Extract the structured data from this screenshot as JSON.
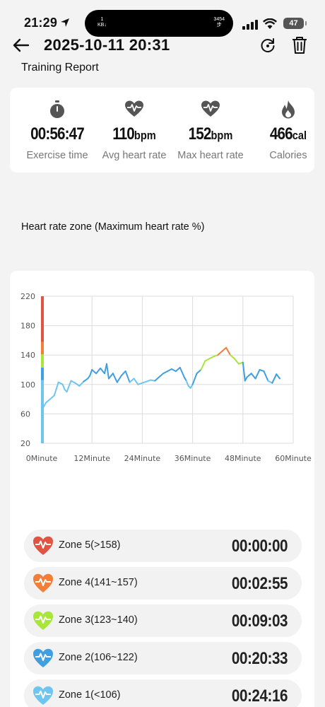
{
  "status_bar": {
    "time": "21:29",
    "island_left": "1\nKB↓",
    "island_right": "3454\n步",
    "battery": "47"
  },
  "header": {
    "title": "2025-10-11 20:31"
  },
  "report": {
    "section_title": "Training Report",
    "stats": [
      {
        "value": "00:56:47",
        "unit": "",
        "label": "Exercise time",
        "icon": "stopwatch-icon"
      },
      {
        "value": "110",
        "unit": "bpm",
        "label": "Avg heart rate",
        "icon": "heart-pulse-icon"
      },
      {
        "value": "152",
        "unit": "bpm",
        "label": "Max heart rate",
        "icon": "heart-pulse-icon"
      },
      {
        "value": "466",
        "unit": "cal",
        "label": "Calories",
        "icon": "flame-icon"
      }
    ]
  },
  "zone_heading": "Heart rate zone (Maximum heart rate %)",
  "chart_data": {
    "type": "line",
    "title": "",
    "xlabel": "",
    "ylabel": "",
    "x_ticks": [
      "0Minute",
      "12Minute",
      "24Minute",
      "36Minute",
      "48Minute",
      "60Minute"
    ],
    "x_tick_values": [
      0,
      12,
      24,
      36,
      48,
      60
    ],
    "y_ticks": [
      20,
      60,
      100,
      140,
      180,
      220
    ],
    "xlim": [
      0,
      60
    ],
    "ylim": [
      20,
      220
    ],
    "grid": true,
    "zone_bar": [
      {
        "zone": 1,
        "from": 20,
        "to": 106,
        "color": "#6ec6f0"
      },
      {
        "zone": 2,
        "from": 106,
        "to": 123,
        "color": "#3f9fe0"
      },
      {
        "zone": 3,
        "from": 123,
        "to": 141,
        "color": "#a8e63a"
      },
      {
        "zone": 4,
        "from": 141,
        "to": 158,
        "color": "#f07f3a"
      },
      {
        "zone": 5,
        "from": 158,
        "to": 220,
        "color": "#e05444"
      }
    ],
    "series": [
      {
        "x": [
          0.3,
          1,
          2,
          3,
          4,
          5,
          5.5,
          6,
          7,
          8,
          9,
          10,
          11,
          11.5,
          12,
          13,
          14,
          15,
          15.5,
          16,
          17,
          18,
          19,
          20,
          21,
          22,
          23,
          24,
          25,
          26,
          27,
          28,
          29,
          30,
          31,
          32,
          33,
          34,
          34.5,
          35,
          35.5,
          36,
          37,
          38,
          39,
          40,
          41,
          42,
          43,
          44,
          45,
          46,
          47,
          48,
          48.5,
          49,
          50,
          51,
          52,
          53,
          54,
          55,
          56,
          56.8
        ],
        "y": [
          68,
          75,
          80,
          85,
          103,
          100,
          93,
          90,
          105,
          102,
          98,
          104,
          108,
          112,
          120,
          115,
          122,
          115,
          128,
          108,
          115,
          103,
          112,
          118,
          103,
          108,
          100,
          102,
          104,
          106,
          105,
          110,
          115,
          118,
          121,
          118,
          123,
          110,
          105,
          98,
          95,
          100,
          115,
          120,
          132,
          135,
          138,
          140,
          145,
          150,
          140,
          135,
          128,
          130,
          105,
          110,
          115,
          108,
          120,
          118,
          105,
          102,
          114,
          108
        ]
      }
    ]
  },
  "zones": [
    {
      "label": "Zone 5(>158)",
      "time": "00:00:00",
      "color": "#e05444"
    },
    {
      "label": "Zone 4(141~157)",
      "time": "00:02:55",
      "color": "#f07f3a"
    },
    {
      "label": "Zone 3(123~140)",
      "time": "00:09:03",
      "color": "#a8e63a"
    },
    {
      "label": "Zone 2(106~122)",
      "time": "00:20:33",
      "color": "#3f9fe0"
    },
    {
      "label": "Zone 1(<106)",
      "time": "00:24:16",
      "color": "#6ec6f0"
    }
  ]
}
